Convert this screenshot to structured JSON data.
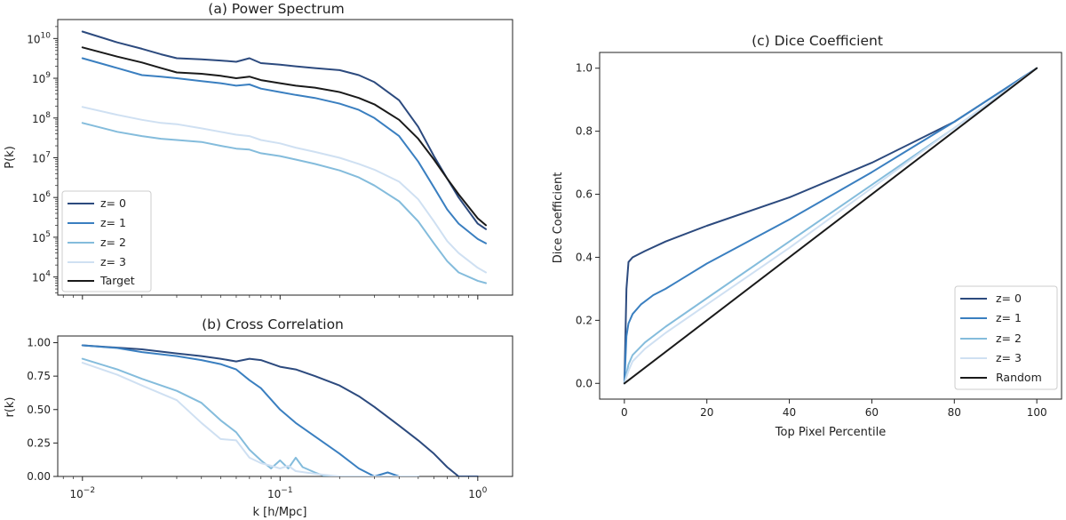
{
  "colors": {
    "z0": "#2c4a7e",
    "z1": "#3a7fc0",
    "z2": "#84bcdc",
    "z3": "#cfe0f2",
    "target": "#1a1a1a"
  },
  "chart_data": [
    {
      "id": "power-spectrum",
      "type": "line",
      "title": "(a)  Power Spectrum",
      "xlabel": "",
      "ylabel": "P(k)",
      "xscale": "log",
      "yscale": "log",
      "xlim": [
        0.0075,
        1.5
      ],
      "ylim": [
        3500,
        30000000000
      ],
      "y_ticks": [
        {
          "value": 10000,
          "base": "10",
          "exp": "4"
        },
        {
          "value": 100000,
          "base": "10",
          "exp": "5"
        },
        {
          "value": 1000000,
          "base": "10",
          "exp": "6"
        },
        {
          "value": 10000000,
          "base": "10",
          "exp": "7"
        },
        {
          "value": 100000000,
          "base": "10",
          "exp": "8"
        },
        {
          "value": 1000000000,
          "base": "10",
          "exp": "9"
        },
        {
          "value": 10000000000,
          "base": "10",
          "exp": "10"
        }
      ],
      "legend": {
        "position": "lower-left",
        "entries": [
          "z= 0",
          "z= 1",
          "z= 2",
          "z= 3",
          "Target"
        ]
      },
      "series": [
        {
          "name": "z= 0",
          "color_key": "z0",
          "x": [
            0.01,
            0.015,
            0.02,
            0.025,
            0.03,
            0.04,
            0.05,
            0.06,
            0.07,
            0.08,
            0.1,
            0.12,
            0.15,
            0.2,
            0.25,
            0.3,
            0.4,
            0.5,
            0.6,
            0.7,
            0.8,
            1.0,
            1.1
          ],
          "y": [
            15000000000.0,
            8000000000.0,
            5500000000.0,
            4000000000.0,
            3200000000.0,
            3000000000.0,
            2800000000.0,
            2600000000.0,
            3200000000.0,
            2400000000.0,
            2200000000.0,
            2000000000.0,
            1800000000.0,
            1600000000.0,
            1200000000.0,
            800000000.0,
            280000000.0,
            60000000.0,
            11000000.0,
            3000000.0,
            1000000.0,
            220000.0,
            160000.0
          ]
        },
        {
          "name": "z= 1",
          "color_key": "z1",
          "x": [
            0.01,
            0.015,
            0.02,
            0.025,
            0.03,
            0.04,
            0.05,
            0.06,
            0.07,
            0.08,
            0.1,
            0.12,
            0.15,
            0.2,
            0.25,
            0.3,
            0.4,
            0.5,
            0.6,
            0.7,
            0.8,
            1.0,
            1.1
          ],
          "y": [
            3200000000.0,
            1800000000.0,
            1200000000.0,
            1100000000.0,
            1000000000.0,
            850000000.0,
            750000000.0,
            650000000.0,
            700000000.0,
            550000000.0,
            450000000.0,
            380000000.0,
            320000000.0,
            230000000.0,
            160000000.0,
            100000000.0,
            35000000.0,
            8000000.0,
            1800000.0,
            500000.0,
            220000.0,
            90000.0,
            70000.0
          ]
        },
        {
          "name": "z= 2",
          "color_key": "z2",
          "x": [
            0.01,
            0.015,
            0.02,
            0.025,
            0.03,
            0.04,
            0.05,
            0.06,
            0.07,
            0.08,
            0.1,
            0.12,
            0.15,
            0.2,
            0.25,
            0.3,
            0.4,
            0.5,
            0.6,
            0.7,
            0.8,
            1.0,
            1.1
          ],
          "y": [
            75000000.0,
            45000000.0,
            35000000.0,
            30000000.0,
            28000000.0,
            25000000.0,
            20000000.0,
            17000000.0,
            16000000.0,
            13000000.0,
            11000000.0,
            9000000.0,
            7000000.0,
            4800000.0,
            3200000.0,
            2000000.0,
            800000.0,
            250000.0,
            70000.0,
            25000.0,
            13000.0,
            8000.0,
            7000.0
          ]
        },
        {
          "name": "z= 3",
          "color_key": "z3",
          "x": [
            0.01,
            0.015,
            0.02,
            0.025,
            0.03,
            0.04,
            0.05,
            0.06,
            0.07,
            0.08,
            0.1,
            0.12,
            0.15,
            0.2,
            0.25,
            0.3,
            0.4,
            0.5,
            0.6,
            0.7,
            0.8,
            1.0,
            1.1
          ],
          "y": [
            190000000.0,
            120000000.0,
            90000000.0,
            75000000.0,
            70000000.0,
            55000000.0,
            45000000.0,
            38000000.0,
            35000000.0,
            28000000.0,
            23000000.0,
            18000000.0,
            14000000.0,
            10000000.0,
            7000000.0,
            5000000.0,
            2500000.0,
            900000.0,
            250000.0,
            80000.0,
            40000.0,
            17000.0,
            13000.0
          ]
        },
        {
          "name": "Target",
          "color_key": "target",
          "x": [
            0.01,
            0.015,
            0.02,
            0.025,
            0.03,
            0.04,
            0.05,
            0.06,
            0.07,
            0.08,
            0.1,
            0.12,
            0.15,
            0.2,
            0.25,
            0.3,
            0.4,
            0.5,
            0.6,
            0.7,
            0.8,
            1.0,
            1.1
          ],
          "y": [
            6000000000.0,
            3500000000.0,
            2500000000.0,
            1800000000.0,
            1400000000.0,
            1300000000.0,
            1150000000.0,
            1000000000.0,
            1100000000.0,
            900000000.0,
            750000000.0,
            650000000.0,
            580000000.0,
            450000000.0,
            320000000.0,
            220000000.0,
            90000000.0,
            30000000.0,
            9000000.0,
            3000000.0,
            1200000.0,
            300000.0,
            200000.0
          ]
        }
      ]
    },
    {
      "id": "cross-correlation",
      "type": "line",
      "title": "(b)  Cross Correlation",
      "xlabel": "k [h/Mpc]",
      "ylabel": "r(k)",
      "xscale": "log",
      "yscale": "linear",
      "xlim": [
        0.0075,
        1.5
      ],
      "ylim": [
        0,
        1.05
      ],
      "x_ticks": [
        {
          "value": 0.01,
          "base": "10",
          "exp": "−2"
        },
        {
          "value": 0.1,
          "base": "10",
          "exp": "−1"
        },
        {
          "value": 1,
          "base": "10",
          "exp": "0"
        }
      ],
      "y_ticks": [
        {
          "value": 0.0,
          "label": "0.00"
        },
        {
          "value": 0.25,
          "label": "0.25"
        },
        {
          "value": 0.5,
          "label": "0.50"
        },
        {
          "value": 0.75,
          "label": "0.75"
        },
        {
          "value": 1.0,
          "label": "1.00"
        }
      ],
      "series": [
        {
          "name": "z= 0",
          "color_key": "z0",
          "x": [
            0.01,
            0.02,
            0.03,
            0.04,
            0.05,
            0.06,
            0.07,
            0.08,
            0.1,
            0.12,
            0.15,
            0.2,
            0.25,
            0.3,
            0.4,
            0.5,
            0.6,
            0.7,
            0.8,
            0.9,
            1.0
          ],
          "y": [
            0.98,
            0.95,
            0.92,
            0.9,
            0.88,
            0.86,
            0.88,
            0.87,
            0.82,
            0.8,
            0.75,
            0.68,
            0.6,
            0.52,
            0.38,
            0.27,
            0.17,
            0.07,
            0.0,
            0.0,
            0.0
          ]
        },
        {
          "name": "z= 1",
          "color_key": "z1",
          "x": [
            0.01,
            0.015,
            0.02,
            0.03,
            0.04,
            0.05,
            0.06,
            0.07,
            0.08,
            0.1,
            0.12,
            0.15,
            0.2,
            0.25,
            0.3,
            0.35,
            0.4,
            0.5
          ],
          "y": [
            0.98,
            0.96,
            0.93,
            0.9,
            0.87,
            0.84,
            0.8,
            0.72,
            0.66,
            0.5,
            0.4,
            0.3,
            0.17,
            0.06,
            0.0,
            0.03,
            0.0,
            0.0
          ]
        },
        {
          "name": "z= 2",
          "color_key": "z2",
          "x": [
            0.01,
            0.015,
            0.02,
            0.03,
            0.04,
            0.05,
            0.06,
            0.07,
            0.08,
            0.09,
            0.1,
            0.11,
            0.12,
            0.13,
            0.15,
            0.17,
            0.2,
            0.3,
            0.5
          ],
          "y": [
            0.88,
            0.8,
            0.73,
            0.64,
            0.55,
            0.42,
            0.33,
            0.2,
            0.12,
            0.06,
            0.12,
            0.06,
            0.14,
            0.07,
            0.03,
            0.0,
            0.0,
            0.0,
            0.0
          ]
        },
        {
          "name": "z= 3",
          "color_key": "z3",
          "x": [
            0.01,
            0.015,
            0.02,
            0.03,
            0.04,
            0.05,
            0.06,
            0.07,
            0.08,
            0.09,
            0.1,
            0.11,
            0.12,
            0.15,
            0.2,
            0.3,
            0.5
          ],
          "y": [
            0.85,
            0.76,
            0.68,
            0.57,
            0.4,
            0.28,
            0.27,
            0.14,
            0.1,
            0.08,
            0.06,
            0.08,
            0.04,
            0.02,
            0.0,
            0.0,
            0.0
          ]
        }
      ]
    },
    {
      "id": "dice-coefficient",
      "type": "line",
      "title": "(c)  Dice Coefficient",
      "xlabel": "Top Pixel Percentile",
      "ylabel": "Dice Coefficient",
      "xscale": "linear",
      "yscale": "linear",
      "xlim": [
        -6,
        106
      ],
      "ylim": [
        -0.05,
        1.05
      ],
      "x_ticks": [
        {
          "value": 0,
          "label": "0"
        },
        {
          "value": 20,
          "label": "20"
        },
        {
          "value": 40,
          "label": "40"
        },
        {
          "value": 60,
          "label": "60"
        },
        {
          "value": 80,
          "label": "80"
        },
        {
          "value": 100,
          "label": "100"
        }
      ],
      "y_ticks": [
        {
          "value": 0.0,
          "label": "0.0"
        },
        {
          "value": 0.2,
          "label": "0.2"
        },
        {
          "value": 0.4,
          "label": "0.4"
        },
        {
          "value": 0.6,
          "label": "0.6"
        },
        {
          "value": 0.8,
          "label": "0.8"
        },
        {
          "value": 1.0,
          "label": "1.0"
        }
      ],
      "legend": {
        "position": "lower-right",
        "entries": [
          "z= 0",
          "z= 1",
          "z= 2",
          "z= 3",
          "Random"
        ]
      },
      "series": [
        {
          "name": "z= 0",
          "color_key": "z0",
          "x": [
            0,
            0.5,
            1,
            2,
            5,
            10,
            20,
            40,
            60,
            80,
            100
          ],
          "y": [
            0.0,
            0.3,
            0.385,
            0.4,
            0.42,
            0.45,
            0.5,
            0.59,
            0.7,
            0.83,
            1.0
          ]
        },
        {
          "name": "z= 1",
          "color_key": "z1",
          "x": [
            0,
            0.5,
            1,
            2,
            4,
            7,
            10,
            15,
            20,
            40,
            60,
            80,
            100
          ],
          "y": [
            0.0,
            0.15,
            0.19,
            0.22,
            0.25,
            0.28,
            0.3,
            0.34,
            0.38,
            0.52,
            0.67,
            0.83,
            1.0
          ]
        },
        {
          "name": "z= 2",
          "color_key": "z2",
          "x": [
            0,
            1,
            2,
            5,
            10,
            20,
            40,
            60,
            80,
            100
          ],
          "y": [
            0.0,
            0.06,
            0.09,
            0.13,
            0.18,
            0.27,
            0.45,
            0.63,
            0.81,
            1.0
          ]
        },
        {
          "name": "z= 3",
          "color_key": "z3",
          "x": [
            0,
            1,
            2,
            5,
            10,
            20,
            40,
            60,
            80,
            100
          ],
          "y": [
            0.0,
            0.04,
            0.07,
            0.11,
            0.16,
            0.25,
            0.43,
            0.62,
            0.81,
            1.0
          ]
        },
        {
          "name": "Random",
          "color_key": "target",
          "x": [
            0,
            100
          ],
          "y": [
            0.0,
            1.0
          ]
        }
      ]
    }
  ]
}
